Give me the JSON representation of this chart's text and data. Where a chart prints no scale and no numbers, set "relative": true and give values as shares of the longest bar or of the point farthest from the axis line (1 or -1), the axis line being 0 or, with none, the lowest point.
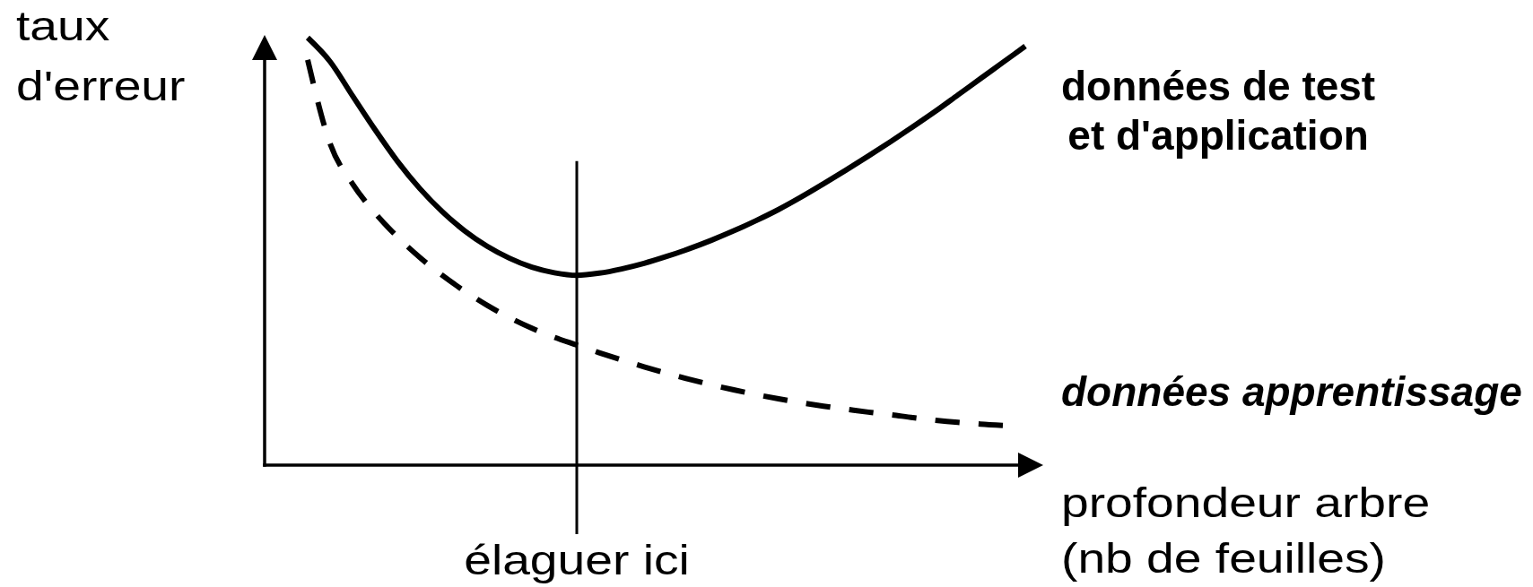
{
  "chart_data": {
    "type": "line",
    "relative": true,
    "ylabel": "taux\nd'erreur",
    "xlabel": "profondeur arbre\n(nb de feuilles)",
    "categories": [
      null,
      null,
      null,
      null,
      null,
      null,
      null,
      null,
      null,
      null,
      null,
      null,
      null,
      null,
      null,
      null,
      null,
      null,
      null,
      null,
      null,
      null,
      null,
      null,
      null,
      null,
      null,
      null,
      null,
      null,
      null,
      null,
      null
    ],
    "series": [
      {
        "name": "données de test\net d'application",
        "color": "#000000",
        "line_style": "solid",
        "values": [
          1,
          0.944,
          0.864,
          0.785,
          0.711,
          0.647,
          0.593,
          0.548,
          0.512,
          0.484,
          0.463,
          0.45,
          0.444,
          0.449,
          0.459,
          0.472,
          0.488,
          0.506,
          0.526,
          0.548,
          0.572,
          0.598,
          0.627,
          0.658,
          0.69,
          0.723,
          0.757,
          0.792,
          0.828,
          0.866,
          0.904,
          0.942,
          0.98
        ]
      },
      {
        "name": "données apprentissage",
        "color": "#000000",
        "line_style": "dashed",
        "values": [
          0.948,
          0.752,
          0.658,
          0.59,
          0.534,
          0.486,
          0.444,
          0.407,
          0.374,
          0.345,
          0.32,
          0.299,
          0.281,
          0.263,
          0.246,
          0.23,
          0.215,
          0.201,
          0.188,
          0.176,
          0.165,
          0.155,
          0.146,
          0.138,
          0.131,
          0.124,
          0.118,
          0.111,
          0.105,
          0.1,
          0.096,
          0.093,
          null
        ]
      }
    ],
    "annotations": [
      "élaguer ici"
    ]
  }
}
